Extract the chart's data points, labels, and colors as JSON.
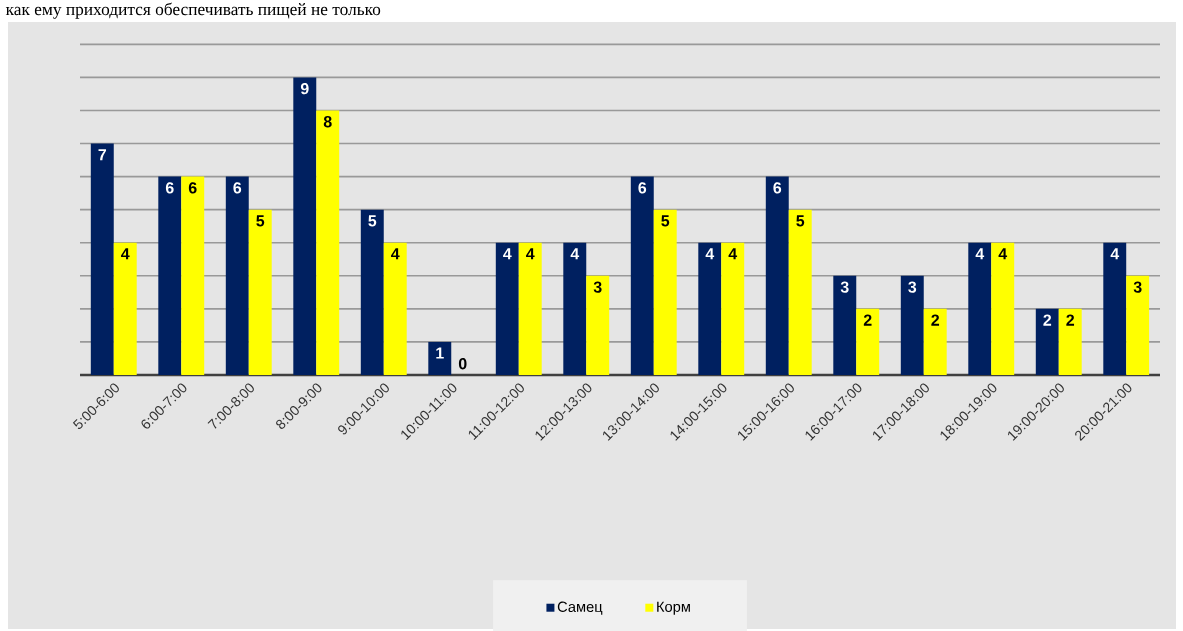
{
  "chart_data": {
    "type": "bar",
    "annotations": [
      "как ему приходится обеспечивать пищей не только"
    ],
    "categories": [
      "5:00-6:00",
      "6:00-7:00",
      "7:00-8:00",
      "8:00-9:00",
      "9:00-10:00",
      "10:00-11:00",
      "11:00-12:00",
      "12:00-13:00",
      "13:00-14:00",
      "14:00-15:00",
      "15:00-16:00",
      "16:00-17:00",
      "17:00-18:00",
      "18:00-19:00",
      "19:00-20:00",
      "20:00-21:00"
    ],
    "series": [
      {
        "name": "Самец",
        "color": "#002060",
        "values": [
          7,
          6,
          6,
          9,
          5,
          1,
          4,
          4,
          6,
          4,
          6,
          3,
          3,
          4,
          2,
          4
        ]
      },
      {
        "name": "Корм",
        "color": "#ffff00",
        "values": [
          4,
          6,
          5,
          8,
          4,
          0,
          4,
          3,
          5,
          4,
          5,
          2,
          2,
          4,
          2,
          3
        ]
      }
    ],
    "ylim": [
      0,
      10
    ],
    "yticks": [
      {
        "value": 1,
        "label": null
      },
      {
        "value": 2,
        "label": null
      },
      {
        "value": 3,
        "label": null
      },
      {
        "value": 4,
        "label": null
      },
      {
        "value": 5,
        "label": null
      },
      {
        "value": 6,
        "label": null
      },
      {
        "value": 7,
        "label": null
      },
      {
        "value": 8,
        "label": null
      },
      {
        "value": 9,
        "label": null
      },
      {
        "value": 10,
        "label": null
      }
    ],
    "tick_labels": "x",
    "grid": "y",
    "legend": "bottom",
    "data_labels": true
  }
}
